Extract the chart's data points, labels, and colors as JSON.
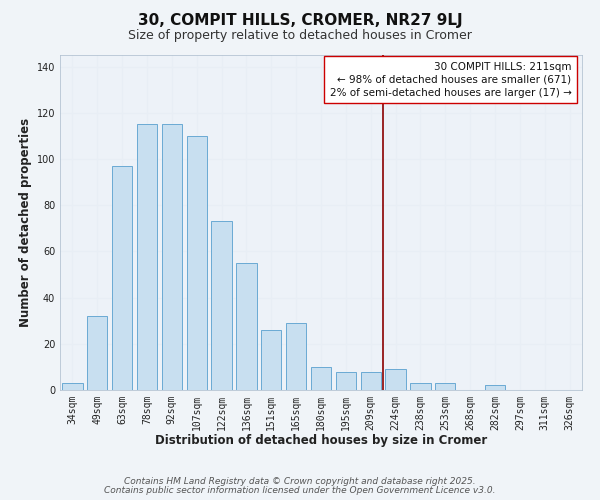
{
  "title": "30, COMPIT HILLS, CROMER, NR27 9LJ",
  "subtitle": "Size of property relative to detached houses in Cromer",
  "xlabel": "Distribution of detached houses by size in Cromer",
  "ylabel": "Number of detached properties",
  "bar_labels": [
    "34sqm",
    "49sqm",
    "63sqm",
    "78sqm",
    "92sqm",
    "107sqm",
    "122sqm",
    "136sqm",
    "151sqm",
    "165sqm",
    "180sqm",
    "195sqm",
    "209sqm",
    "224sqm",
    "238sqm",
    "253sqm",
    "268sqm",
    "282sqm",
    "297sqm",
    "311sqm",
    "326sqm"
  ],
  "bar_values": [
    3,
    32,
    97,
    115,
    115,
    110,
    73,
    55,
    26,
    29,
    10,
    8,
    8,
    9,
    3,
    3,
    0,
    2,
    0,
    0,
    0
  ],
  "bar_color": "#c8dff0",
  "bar_edge_color": "#6aaad4",
  "vline_x_index": 12,
  "vline_color": "#8b0000",
  "annotation_text": "30 COMPIT HILLS: 211sqm\n← 98% of detached houses are smaller (671)\n2% of semi-detached houses are larger (17) →",
  "ylim": [
    0,
    145
  ],
  "yticks": [
    0,
    20,
    40,
    60,
    80,
    100,
    120,
    140
  ],
  "footer_line1": "Contains HM Land Registry data © Crown copyright and database right 2025.",
  "footer_line2": "Contains public sector information licensed under the Open Government Licence v3.0.",
  "bg_color": "#f0f4f8",
  "grid_color": "#e8eef5",
  "plot_bg_color": "#edf2f8",
  "title_fontsize": 11,
  "subtitle_fontsize": 9,
  "label_fontsize": 8.5,
  "tick_fontsize": 7,
  "annotation_fontsize": 7.5,
  "footer_fontsize": 6.5
}
